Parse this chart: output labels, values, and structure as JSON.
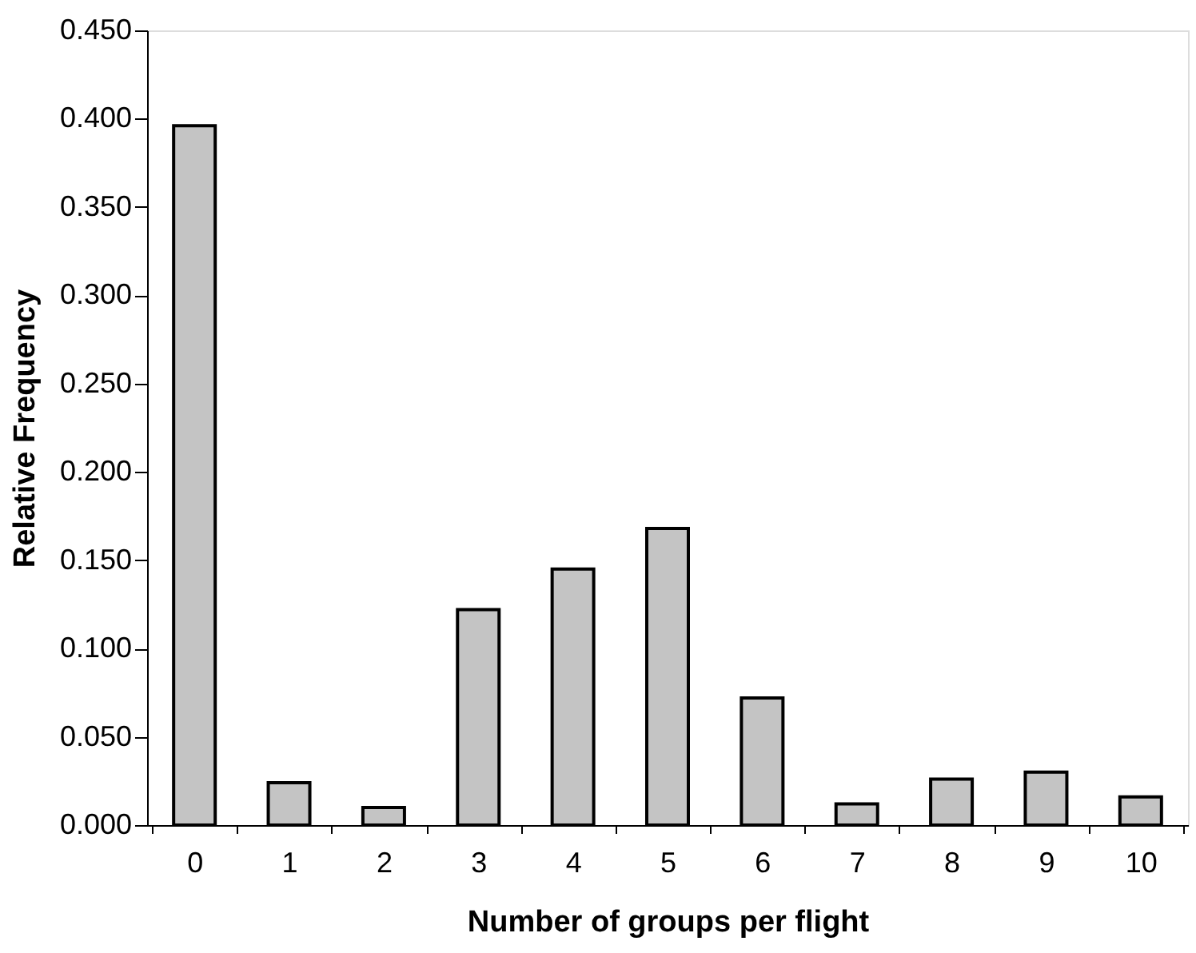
{
  "chart_data": {
    "type": "bar",
    "xlabel": "Number of groups per flight",
    "ylabel": "Relative Frequency",
    "categories": [
      "0",
      "1",
      "2",
      "3",
      "4",
      "5",
      "6",
      "7",
      "8",
      "9",
      "10"
    ],
    "values": [
      0.396,
      0.024,
      0.01,
      0.122,
      0.145,
      0.168,
      0.072,
      0.012,
      0.026,
      0.03,
      0.016
    ],
    "color": "#c4c4c4",
    "ylim": [
      0,
      0.45
    ],
    "yticks": [
      {
        "value": 0,
        "label": "0.000"
      },
      {
        "value": 0.05,
        "label": "0.050"
      },
      {
        "value": 0.1,
        "label": "0.100"
      },
      {
        "value": 0.15,
        "label": "0.150"
      },
      {
        "value": 0.2,
        "label": "0.200"
      },
      {
        "value": 0.25,
        "label": "0.250"
      },
      {
        "value": 0.3,
        "label": "0.300"
      },
      {
        "value": 0.35,
        "label": "0.350"
      },
      {
        "value": 0.4,
        "label": "0.400"
      },
      {
        "value": 0.45,
        "label": "0.450"
      }
    ],
    "grid": false
  }
}
